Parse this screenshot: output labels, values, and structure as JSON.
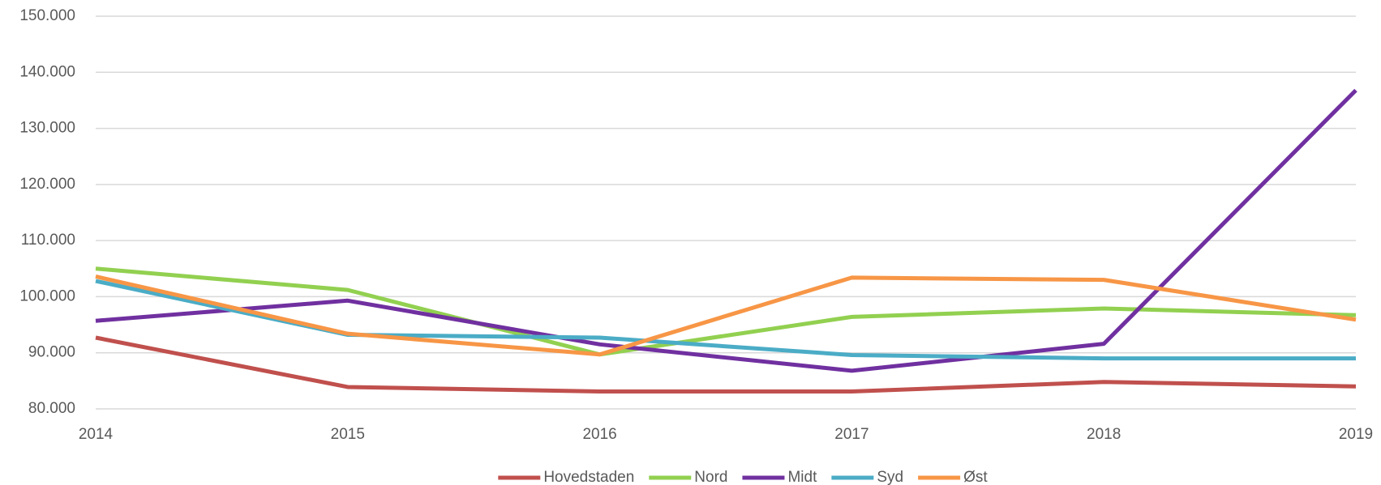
{
  "chart_data": {
    "type": "line",
    "x": [
      2014,
      2015,
      2016,
      2017,
      2018,
      2019
    ],
    "xlim": [
      2014,
      2019
    ],
    "xticks": [
      2014,
      2015,
      2016,
      2017,
      2018,
      2019
    ],
    "ylim": [
      80000,
      150000
    ],
    "yticks": [
      {
        "value": 80000,
        "label": "80.000"
      },
      {
        "value": 90000,
        "label": "90.000"
      },
      {
        "value": 100000,
        "label": "100.000"
      },
      {
        "value": 110000,
        "label": "110.000"
      },
      {
        "value": 120000,
        "label": "120.000"
      },
      {
        "value": 130000,
        "label": "130.000"
      },
      {
        "value": 140000,
        "label": "140.000"
      },
      {
        "value": 150000,
        "label": "150.000"
      }
    ],
    "grid": true,
    "legend": "bottom",
    "series": [
      {
        "name": "Hovedstaden",
        "color": "#c0504d",
        "values": [
          92700,
          83900,
          83100,
          83100,
          84800,
          84000
        ]
      },
      {
        "name": "Nord",
        "color": "#92d050",
        "values": [
          105000,
          101200,
          89700,
          96400,
          97900,
          96700
        ]
      },
      {
        "name": "Midt",
        "color": "#7030a0",
        "values": [
          95700,
          99300,
          91500,
          86800,
          91600,
          136800
        ]
      },
      {
        "name": "Syd",
        "color": "#4bacc6",
        "values": [
          102800,
          93200,
          92700,
          89600,
          89000,
          89000
        ]
      },
      {
        "name": "Øst",
        "color": "#f79646",
        "values": [
          103600,
          93400,
          89700,
          103400,
          103000,
          95900
        ]
      }
    ]
  }
}
